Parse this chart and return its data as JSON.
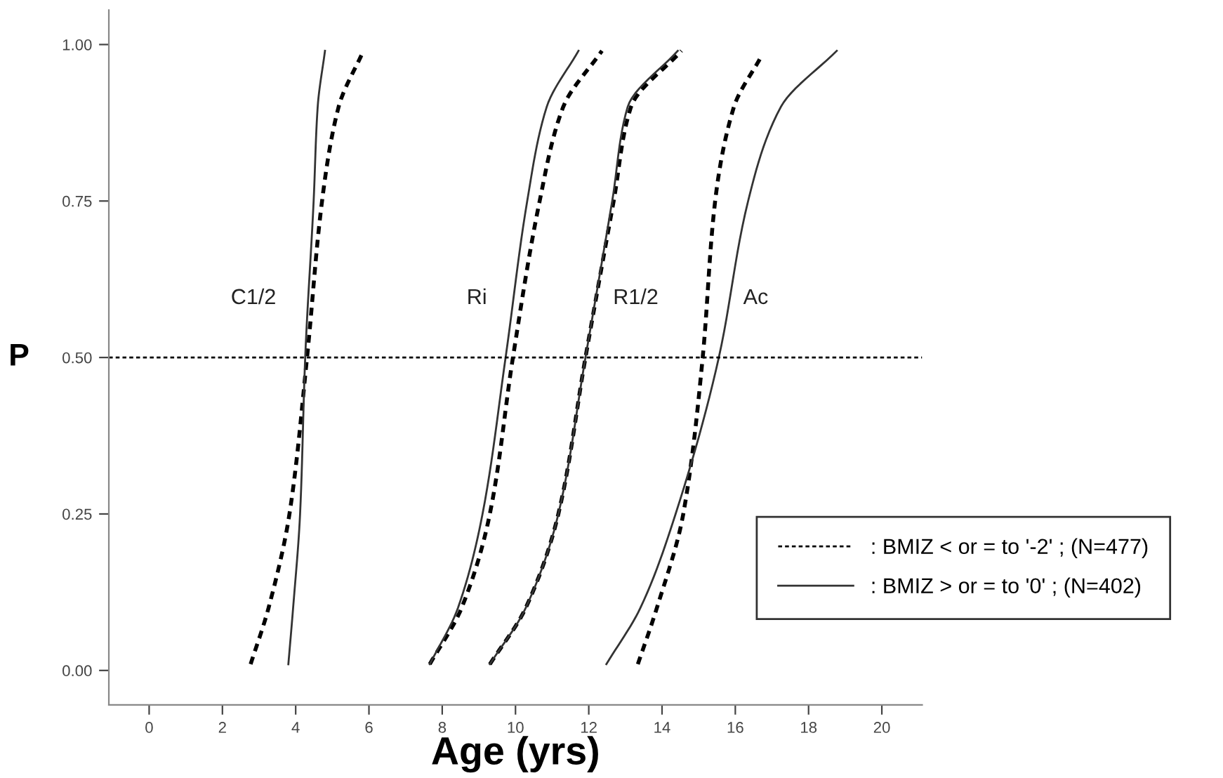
{
  "chart_data": {
    "type": "line",
    "xlabel": "Age (yrs)",
    "ylabel": "P",
    "xlim": [
      -1.1,
      21.1
    ],
    "ylim": [
      -0.055,
      1.055
    ],
    "xticks": [
      0,
      2,
      4,
      6,
      8,
      10,
      12,
      14,
      16,
      18,
      20
    ],
    "yticks": [
      {
        "value": 0,
        "label": "0.00"
      },
      {
        "value": 0.25,
        "label": "0.25"
      },
      {
        "value": 0.5,
        "label": "0.50"
      },
      {
        "value": 0.75,
        "label": "0.75"
      },
      {
        "value": 1,
        "label": "1.00"
      }
    ],
    "grid": false,
    "legend": "right",
    "marker": "none",
    "series": [
      {
        "name": ": BMIZ < or = to '-2' ; (N=477)",
        "color": "#000000",
        "line_style": "dashed",
        "x": [
          2.77,
          3.26,
          3.83,
          4.31,
          4.72,
          5.17,
          5.85
        ],
        "values": [
          0.01,
          0.1,
          0.25,
          0.5,
          0.75,
          0.9,
          0.99
        ]
      },
      {
        "name": ": BMIZ > or = to '0' ; (N=402)",
        "color": "#333333",
        "line_style": "solid",
        "x": [
          3.8,
          3.93,
          4.12,
          4.26,
          4.49,
          4.6,
          4.8
        ],
        "values": [
          0.01,
          0.1,
          0.25,
          0.5,
          0.75,
          0.9,
          0.99
        ]
      },
      {
        "color": "#000000",
        "line_style": "dashed",
        "x": [
          7.66,
          8.53,
          9.3,
          9.93,
          10.66,
          11.3,
          12.36
        ],
        "values": [
          0.01,
          0.1,
          0.25,
          0.5,
          0.75,
          0.9,
          0.99
        ]
      },
      {
        "color": "#333333",
        "line_style": "solid",
        "x": [
          7.66,
          8.43,
          9.1,
          9.73,
          10.32,
          10.85,
          11.72
        ],
        "values": [
          0.01,
          0.1,
          0.25,
          0.5,
          0.75,
          0.9,
          0.99
        ]
      },
      {
        "color": "#000000",
        "line_style": "dashed",
        "x": [
          9.3,
          10.28,
          11.17,
          11.91,
          12.68,
          13.15,
          14.53
        ],
        "values": [
          0.01,
          0.1,
          0.25,
          0.5,
          0.75,
          0.9,
          0.99
        ]
      },
      {
        "color": "#333333",
        "line_style": "solid",
        "x": [
          9.3,
          10.28,
          11.17,
          11.91,
          12.64,
          13.06,
          14.43
        ],
        "values": [
          0.01,
          0.1,
          0.25,
          0.5,
          0.75,
          0.9,
          0.99
        ]
      },
      {
        "color": "#000000",
        "line_style": "dashed",
        "x": [
          13.34,
          13.86,
          14.58,
          15.11,
          15.45,
          15.96,
          16.7
        ],
        "values": [
          0.01,
          0.1,
          0.25,
          0.5,
          0.75,
          0.9,
          0.98
        ]
      },
      {
        "color": "#333333",
        "line_style": "solid",
        "x": [
          12.48,
          13.41,
          14.37,
          15.55,
          16.35,
          17.24,
          18.77
        ],
        "values": [
          0.01,
          0.1,
          0.25,
          0.5,
          0.75,
          0.9,
          0.99
        ]
      }
    ],
    "ref_lines": [
      {
        "axis": "y",
        "value": 0.5,
        "color": "#000000",
        "line_style": "dashed"
      }
    ],
    "annotations": [
      "C1/2",
      "Ri",
      "R1/2",
      "Ac"
    ]
  }
}
